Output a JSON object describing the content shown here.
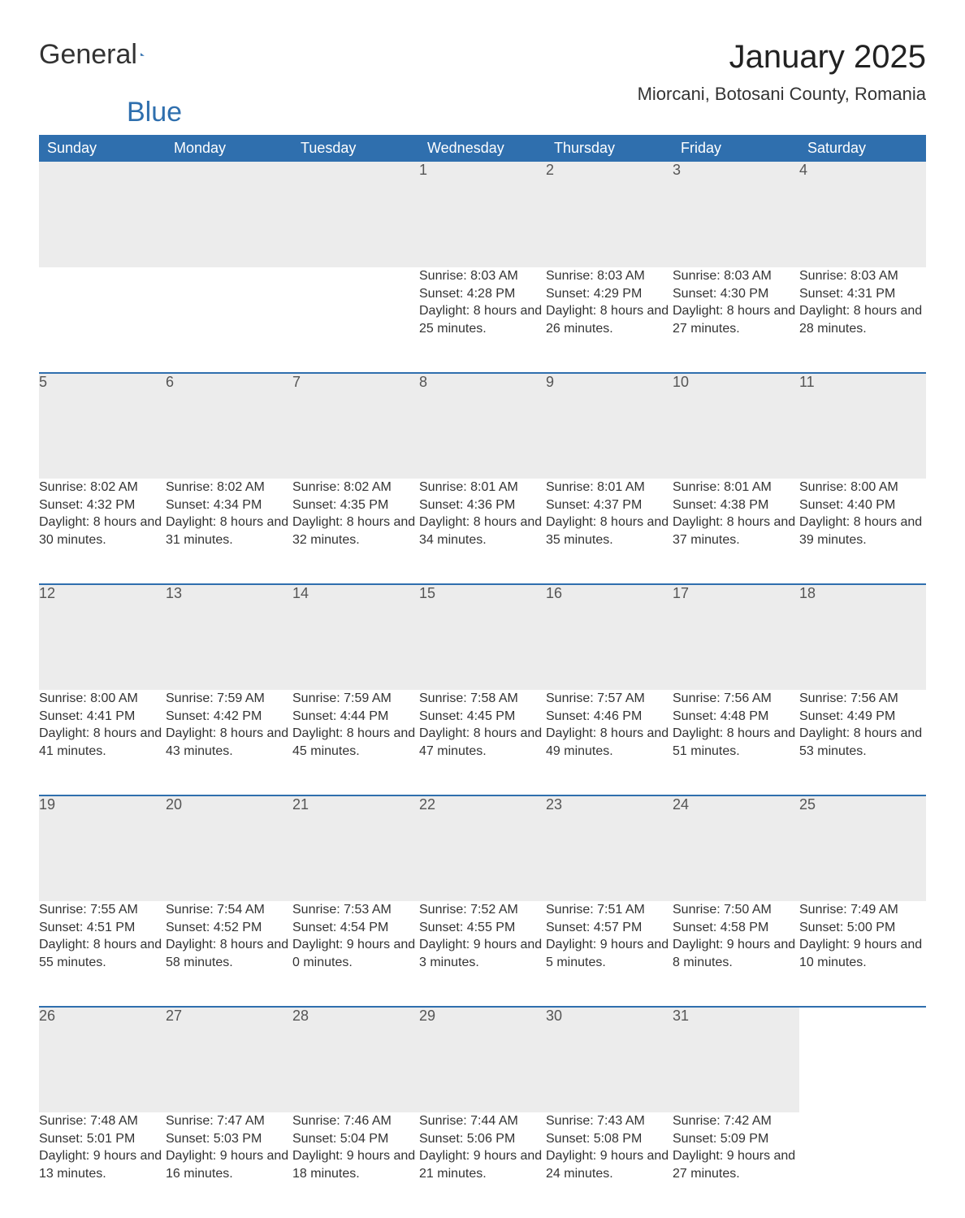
{
  "logo": {
    "word1": "General",
    "word2": "Blue"
  },
  "title": "January 2025",
  "location": "Miorcani, Botosani County, Romania",
  "colors": {
    "header_bg": "#2f6fae",
    "header_text": "#ffffff",
    "daynum_bg": "#ececec",
    "daynum_text": "#555555",
    "body_text": "#333333",
    "rule": "#2f6fae",
    "logo_blue": "#2f6fae",
    "page_bg": "#ffffff"
  },
  "typography": {
    "title_fontsize": 40,
    "location_fontsize": 22,
    "weekday_fontsize": 18,
    "daynum_fontsize": 18,
    "body_fontsize": 16,
    "font_family": "Arial"
  },
  "weekdays": [
    "Sunday",
    "Monday",
    "Tuesday",
    "Wednesday",
    "Thursday",
    "Friday",
    "Saturday"
  ],
  "labels": {
    "sunrise": "Sunrise:",
    "sunset": "Sunset:",
    "daylight": "Daylight:"
  },
  "weeks": [
    [
      null,
      null,
      null,
      {
        "day": "1",
        "sunrise": "8:03 AM",
        "sunset": "4:28 PM",
        "daylight": "8 hours and 25 minutes."
      },
      {
        "day": "2",
        "sunrise": "8:03 AM",
        "sunset": "4:29 PM",
        "daylight": "8 hours and 26 minutes."
      },
      {
        "day": "3",
        "sunrise": "8:03 AM",
        "sunset": "4:30 PM",
        "daylight": "8 hours and 27 minutes."
      },
      {
        "day": "4",
        "sunrise": "8:03 AM",
        "sunset": "4:31 PM",
        "daylight": "8 hours and 28 minutes."
      }
    ],
    [
      {
        "day": "5",
        "sunrise": "8:02 AM",
        "sunset": "4:32 PM",
        "daylight": "8 hours and 30 minutes."
      },
      {
        "day": "6",
        "sunrise": "8:02 AM",
        "sunset": "4:34 PM",
        "daylight": "8 hours and 31 minutes."
      },
      {
        "day": "7",
        "sunrise": "8:02 AM",
        "sunset": "4:35 PM",
        "daylight": "8 hours and 32 minutes."
      },
      {
        "day": "8",
        "sunrise": "8:01 AM",
        "sunset": "4:36 PM",
        "daylight": "8 hours and 34 minutes."
      },
      {
        "day": "9",
        "sunrise": "8:01 AM",
        "sunset": "4:37 PM",
        "daylight": "8 hours and 35 minutes."
      },
      {
        "day": "10",
        "sunrise": "8:01 AM",
        "sunset": "4:38 PM",
        "daylight": "8 hours and 37 minutes."
      },
      {
        "day": "11",
        "sunrise": "8:00 AM",
        "sunset": "4:40 PM",
        "daylight": "8 hours and 39 minutes."
      }
    ],
    [
      {
        "day": "12",
        "sunrise": "8:00 AM",
        "sunset": "4:41 PM",
        "daylight": "8 hours and 41 minutes."
      },
      {
        "day": "13",
        "sunrise": "7:59 AM",
        "sunset": "4:42 PM",
        "daylight": "8 hours and 43 minutes."
      },
      {
        "day": "14",
        "sunrise": "7:59 AM",
        "sunset": "4:44 PM",
        "daylight": "8 hours and 45 minutes."
      },
      {
        "day": "15",
        "sunrise": "7:58 AM",
        "sunset": "4:45 PM",
        "daylight": "8 hours and 47 minutes."
      },
      {
        "day": "16",
        "sunrise": "7:57 AM",
        "sunset": "4:46 PM",
        "daylight": "8 hours and 49 minutes."
      },
      {
        "day": "17",
        "sunrise": "7:56 AM",
        "sunset": "4:48 PM",
        "daylight": "8 hours and 51 minutes."
      },
      {
        "day": "18",
        "sunrise": "7:56 AM",
        "sunset": "4:49 PM",
        "daylight": "8 hours and 53 minutes."
      }
    ],
    [
      {
        "day": "19",
        "sunrise": "7:55 AM",
        "sunset": "4:51 PM",
        "daylight": "8 hours and 55 minutes."
      },
      {
        "day": "20",
        "sunrise": "7:54 AM",
        "sunset": "4:52 PM",
        "daylight": "8 hours and 58 minutes."
      },
      {
        "day": "21",
        "sunrise": "7:53 AM",
        "sunset": "4:54 PM",
        "daylight": "9 hours and 0 minutes."
      },
      {
        "day": "22",
        "sunrise": "7:52 AM",
        "sunset": "4:55 PM",
        "daylight": "9 hours and 3 minutes."
      },
      {
        "day": "23",
        "sunrise": "7:51 AM",
        "sunset": "4:57 PM",
        "daylight": "9 hours and 5 minutes."
      },
      {
        "day": "24",
        "sunrise": "7:50 AM",
        "sunset": "4:58 PM",
        "daylight": "9 hours and 8 minutes."
      },
      {
        "day": "25",
        "sunrise": "7:49 AM",
        "sunset": "5:00 PM",
        "daylight": "9 hours and 10 minutes."
      }
    ],
    [
      {
        "day": "26",
        "sunrise": "7:48 AM",
        "sunset": "5:01 PM",
        "daylight": "9 hours and 13 minutes."
      },
      {
        "day": "27",
        "sunrise": "7:47 AM",
        "sunset": "5:03 PM",
        "daylight": "9 hours and 16 minutes."
      },
      {
        "day": "28",
        "sunrise": "7:46 AM",
        "sunset": "5:04 PM",
        "daylight": "9 hours and 18 minutes."
      },
      {
        "day": "29",
        "sunrise": "7:44 AM",
        "sunset": "5:06 PM",
        "daylight": "9 hours and 21 minutes."
      },
      {
        "day": "30",
        "sunrise": "7:43 AM",
        "sunset": "5:08 PM",
        "daylight": "9 hours and 24 minutes."
      },
      {
        "day": "31",
        "sunrise": "7:42 AM",
        "sunset": "5:09 PM",
        "daylight": "9 hours and 27 minutes."
      },
      null
    ]
  ]
}
